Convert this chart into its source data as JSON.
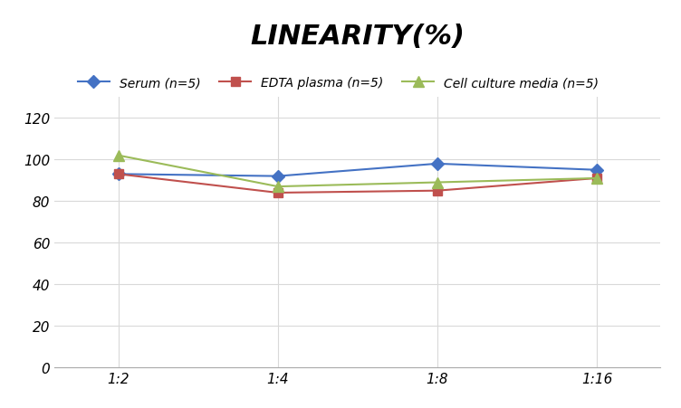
{
  "title": "LINEARITY(%)",
  "x_labels": [
    "1:2",
    "1:4",
    "1:8",
    "1:16"
  ],
  "x_positions": [
    0,
    1,
    2,
    3
  ],
  "series": [
    {
      "label": "Serum (n=5)",
      "values": [
        93,
        92,
        98,
        95
      ],
      "color": "#4472C4",
      "marker": "D",
      "markersize": 7,
      "linewidth": 1.5
    },
    {
      "label": "EDTA plasma (n=5)",
      "values": [
        93,
        84,
        85,
        91
      ],
      "color": "#C0504D",
      "marker": "s",
      "markersize": 7,
      "linewidth": 1.5
    },
    {
      "label": "Cell culture media (n=5)",
      "values": [
        102,
        87,
        89,
        91
      ],
      "color": "#9BBB59",
      "marker": "^",
      "markersize": 8,
      "linewidth": 1.5
    }
  ],
  "ylim": [
    0,
    130
  ],
  "yticks": [
    0,
    20,
    40,
    60,
    80,
    100,
    120
  ],
  "grid_color": "#D9D9D9",
  "background_color": "#FFFFFF",
  "title_fontsize": 22,
  "legend_fontsize": 10,
  "tick_fontsize": 11
}
